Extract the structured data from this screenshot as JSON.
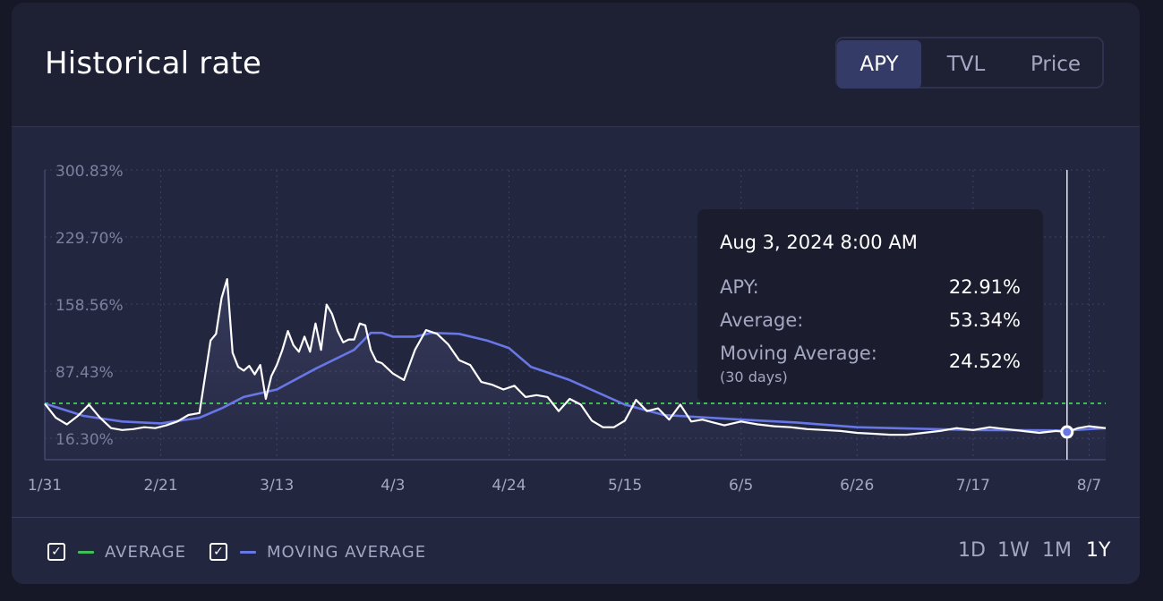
{
  "title": "Historical rate",
  "tabs": [
    {
      "label": "APY",
      "active": true
    },
    {
      "label": "TVL",
      "active": false
    },
    {
      "label": "Price",
      "active": false
    }
  ],
  "tooltip": {
    "date": "Aug 3, 2024 8:00 AM",
    "rows": [
      {
        "label": "APY:",
        "value": "22.91%"
      },
      {
        "label": "Average:",
        "value": "53.34%"
      },
      {
        "label": "Moving Average:",
        "sublabel": "(30 days)",
        "value": "24.52%"
      }
    ]
  },
  "legend": [
    {
      "label": "AVERAGE",
      "color": "#3fbf5a",
      "checked": true
    },
    {
      "label": "MOVING AVERAGE",
      "color": "#6877e6",
      "checked": true
    }
  ],
  "ranges": [
    {
      "label": "1D",
      "active": false
    },
    {
      "label": "1W",
      "active": false
    },
    {
      "label": "1M",
      "active": false
    },
    {
      "label": "1Y",
      "active": true
    }
  ],
  "colors": {
    "apy_line": "#ffffff",
    "moving_average_line": "#6877e6",
    "average_line": "#3fbf5a",
    "grid": "#3e4366"
  },
  "chart_data": {
    "type": "line",
    "x_start": "1/31",
    "x_end": "8/10",
    "xticks": [
      "1/31",
      "2/21",
      "3/13",
      "4/3",
      "4/24",
      "5/15",
      "6/5",
      "6/26",
      "7/17",
      "8/7"
    ],
    "yticks": [
      "300.83%",
      "229.70%",
      "158.56%",
      "87.43%",
      "16.30%"
    ],
    "ylim": [
      16.3,
      300.83
    ],
    "average": 53.34,
    "hover_x": "8/3",
    "hover_value": 22.91,
    "series": [
      {
        "name": "APY",
        "x": [
          "1/31",
          "2/2",
          "2/4",
          "2/6",
          "2/8",
          "2/10",
          "2/12",
          "2/14",
          "2/16",
          "2/18",
          "2/20",
          "2/22",
          "2/24",
          "2/26",
          "2/28",
          "3/1",
          "3/2",
          "3/3",
          "3/4",
          "3/5",
          "3/6",
          "3/7",
          "3/8",
          "3/9",
          "3/10",
          "3/11",
          "3/12",
          "3/13",
          "3/14",
          "3/15",
          "3/16",
          "3/17",
          "3/18",
          "3/19",
          "3/20",
          "3/21",
          "3/22",
          "3/23",
          "3/24",
          "3/25",
          "3/26",
          "3/27",
          "3/28",
          "3/29",
          "3/30",
          "3/31",
          "4/1",
          "4/3",
          "4/5",
          "4/7",
          "4/9",
          "4/11",
          "4/13",
          "4/15",
          "4/17",
          "4/19",
          "4/21",
          "4/23",
          "4/25",
          "4/27",
          "4/29",
          "5/1",
          "5/3",
          "5/5",
          "5/7",
          "5/9",
          "5/11",
          "5/13",
          "5/15",
          "5/17",
          "5/19",
          "5/21",
          "5/23",
          "5/25",
          "5/27",
          "5/29",
          "5/31",
          "6/2",
          "6/5",
          "6/8",
          "6/11",
          "6/14",
          "6/17",
          "6/20",
          "6/23",
          "6/26",
          "6/29",
          "7/2",
          "7/5",
          "7/8",
          "7/11",
          "7/14",
          "7/17",
          "7/20",
          "7/23",
          "7/26",
          "7/29",
          "8/1",
          "8/3",
          "8/5",
          "8/7",
          "8/10"
        ],
        "values": [
          53,
          38,
          31,
          40,
          52,
          38,
          27,
          25,
          26,
          28,
          27,
          30,
          34,
          41,
          43,
          120,
          127,
          165,
          185,
          107,
          92,
          88,
          93,
          84,
          94,
          58,
          82,
          94,
          110,
          130,
          115,
          108,
          124,
          108,
          138,
          110,
          158,
          148,
          130,
          118,
          121,
          121,
          138,
          136,
          110,
          98,
          96,
          85,
          78,
          110,
          131,
          127,
          116,
          99,
          94,
          76,
          73,
          68,
          72,
          60,
          62,
          60,
          45,
          58,
          52,
          35,
          28,
          28,
          35,
          57,
          45,
          48,
          36,
          52,
          34,
          36,
          33,
          30,
          34,
          31,
          29,
          28,
          26,
          25,
          24,
          22,
          21,
          20,
          20,
          22,
          24,
          27,
          25,
          28,
          26,
          24,
          22,
          24,
          22.91,
          27,
          29,
          27
        ]
      },
      {
        "name": "Moving Average",
        "x": [
          "1/31",
          "2/7",
          "2/14",
          "2/21",
          "2/28",
          "3/3",
          "3/7",
          "3/13",
          "3/20",
          "3/27",
          "3/30",
          "4/1",
          "4/3",
          "4/7",
          "4/10",
          "4/15",
          "4/20",
          "4/24",
          "4/28",
          "5/5",
          "5/15",
          "5/22",
          "6/5",
          "6/15",
          "6/26",
          "7/10",
          "7/17",
          "8/3",
          "8/10"
        ],
        "values": [
          53,
          40,
          34,
          32,
          38,
          48,
          60,
          68,
          90,
          110,
          128,
          128,
          124,
          124,
          128,
          127,
          120,
          112,
          92,
          78,
          52,
          41,
          36,
          33,
          28,
          26,
          25,
          24.52,
          27
        ]
      }
    ]
  }
}
